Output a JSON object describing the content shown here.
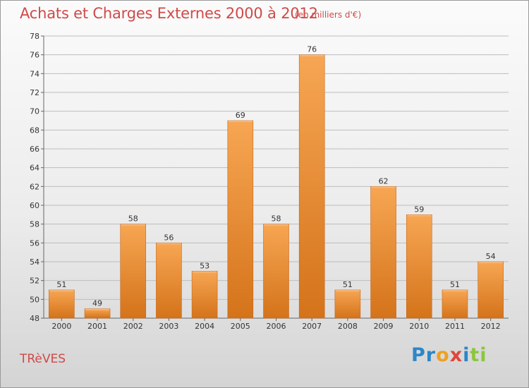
{
  "header": {
    "title": "Achats et Charges Externes 2000 à 2012",
    "unit": "(en milliers d'€)"
  },
  "footer": {
    "town": "TRèVES",
    "logo_letters": [
      {
        "ch": "P",
        "color": "#2c86c9"
      },
      {
        "ch": "r",
        "color": "#2c86c9"
      },
      {
        "ch": "o",
        "color": "#f0a020"
      },
      {
        "ch": "x",
        "color": "#e0453a"
      },
      {
        "ch": "i",
        "color": "#2c86c9"
      },
      {
        "ch": "t",
        "color": "#8cc63f"
      },
      {
        "ch": "i",
        "color": "#8cc63f"
      }
    ]
  },
  "colors": {
    "title": "#d04a48",
    "bar_light": "#f7a653",
    "bar_dark": "#d4731a",
    "axis_text": "#333333"
  },
  "chart_data": {
    "type": "bar",
    "categories": [
      "2000",
      "2001",
      "2002",
      "2003",
      "2004",
      "2005",
      "2006",
      "2007",
      "2008",
      "2009",
      "2010",
      "2011",
      "2012"
    ],
    "values": [
      51,
      49,
      58,
      56,
      53,
      69,
      58,
      76,
      51,
      62,
      59,
      51,
      54
    ],
    "value_labels": [
      "51",
      "49",
      "58",
      "56",
      "53",
      "69",
      "58",
      "76",
      "51",
      "62",
      "59",
      "51",
      "54"
    ],
    "ylim": [
      48,
      78
    ],
    "yticks": [
      "48",
      "50",
      "52",
      "54",
      "56",
      "58",
      "60",
      "62",
      "64",
      "66",
      "68",
      "70",
      "72",
      "74",
      "76",
      "78"
    ],
    "grid": "horizontal",
    "title": "Achats et Charges Externes 2000 à 2012",
    "xlabel": "",
    "ylabel": ""
  }
}
